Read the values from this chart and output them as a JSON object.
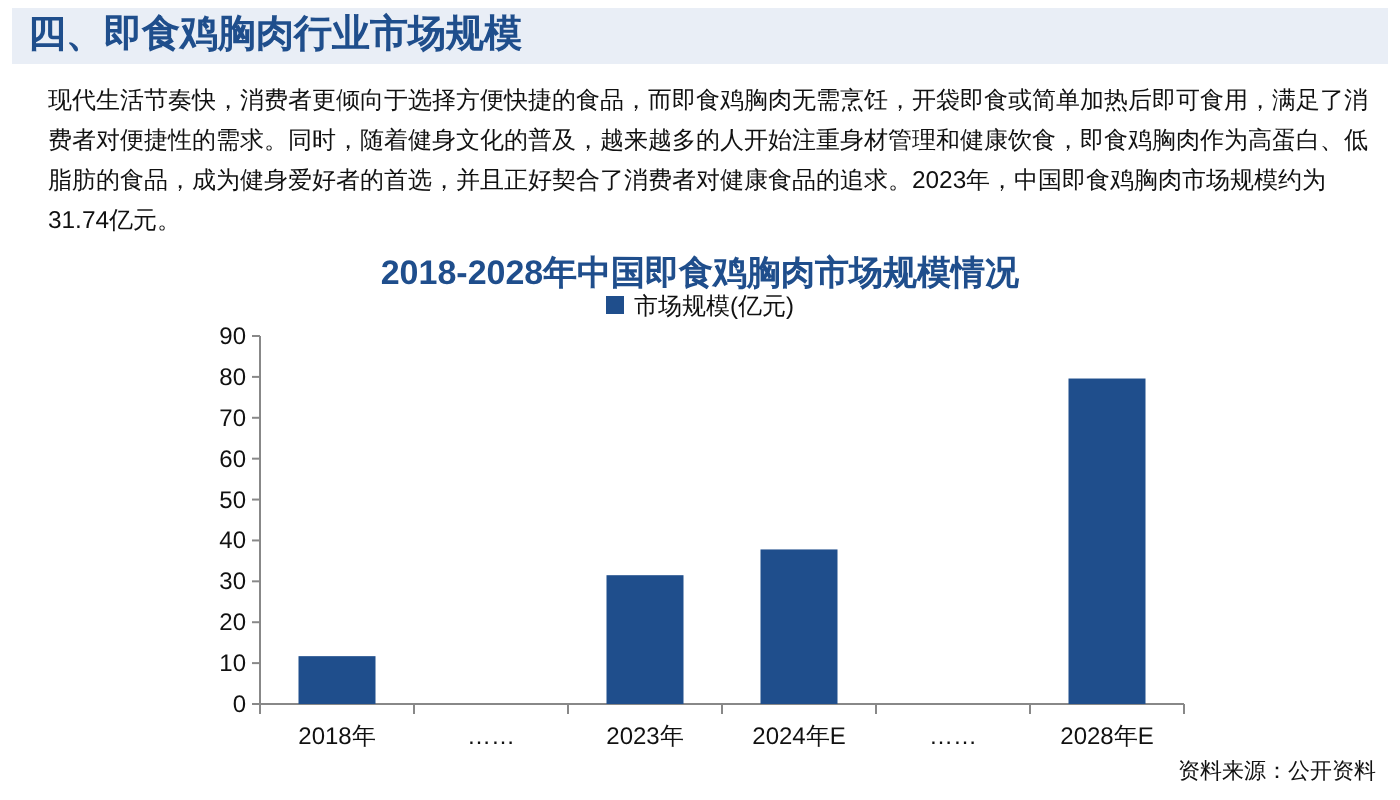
{
  "chart_data": {
    "type": "bar",
    "title": "2018-2028年中国即食鸡胸肉市场规模情况",
    "annotations": [
      "四、即食鸡胸肉行业市场规模",
      "现代生活节奏快，消费者更倾向于选择方便快捷的食品，而即食鸡胸肉无需烹饪，开袋即食或简单加热后即可食用，满足了消费者对便捷性的需求。同时，随着健身文化的普及，越来越多的人开始注重身材管理和健康饮食，即食鸡胸肉作为高蛋白、低脂肪的食品，成为健身爱好者的首选，并且正好契合了消费者对健康食品的追求。2023年，中国即食鸡胸肉市场规模约为31.74亿元。",
      "资料来源：公开资料"
    ],
    "categories": [
      "2018年",
      "……",
      "2023年",
      "2024年E",
      "……",
      "2028年E"
    ],
    "series": [
      {
        "name": "市场规模(亿元)",
        "color": "#1f4e8c",
        "values": [
          11.7,
          null,
          31.5,
          37.8,
          null,
          79.6
        ]
      }
    ],
    "ylim": [
      0,
      90
    ],
    "yticks": [
      0,
      10,
      20,
      30,
      40,
      50,
      60,
      70,
      80,
      90
    ],
    "grid": false,
    "legend": "top"
  }
}
